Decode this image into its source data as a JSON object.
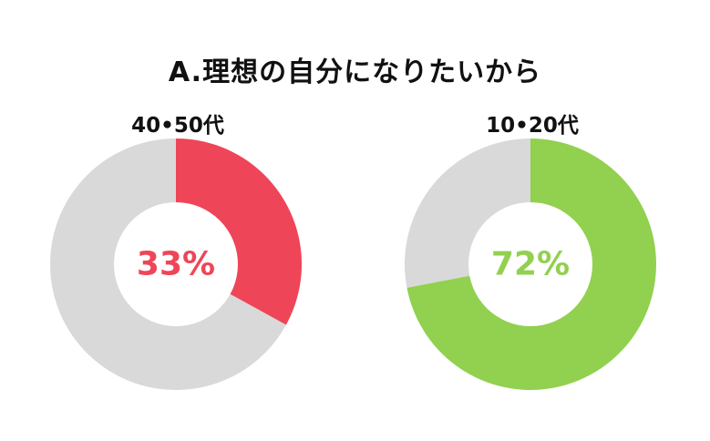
{
  "title": "A.理想の自分になりたいから",
  "chart_data": [
    {
      "type": "pie",
      "title": "40•50代",
      "percent": 33,
      "percent_label": "33%",
      "colors": {
        "value": "#EF4558",
        "rest": "#D9D9D9"
      }
    },
    {
      "type": "pie",
      "title": "10•20代",
      "percent": 72,
      "percent_label": "72%",
      "colors": {
        "value": "#92D050",
        "rest": "#D9D9D9"
      }
    }
  ]
}
